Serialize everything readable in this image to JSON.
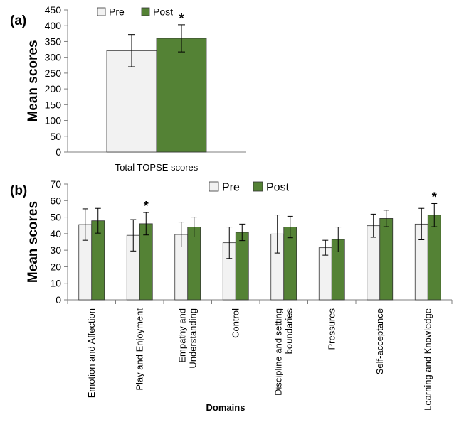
{
  "colors": {
    "pre": "#f2f2f2",
    "post": "#548235",
    "edge": "#333333",
    "axis": "#7f7f7f"
  },
  "chart_data": [
    {
      "panel": "(a)",
      "type": "bar",
      "ylabel": "Mean scores",
      "xlabel": "Total TOPSE scores",
      "ylim": [
        0,
        450
      ],
      "yticks": [
        0,
        50,
        100,
        150,
        200,
        250,
        300,
        350,
        400,
        450
      ],
      "categories": [
        ""
      ],
      "legend": {
        "placement": "top",
        "entries": [
          "Pre",
          "Post"
        ]
      },
      "series": [
        {
          "name": "Pre",
          "values": [
            321
          ],
          "errors": [
            51
          ]
        },
        {
          "name": "Post",
          "values": [
            360
          ],
          "errors": [
            43
          ]
        }
      ],
      "annotations": [
        {
          "text": "*",
          "category_index": 0,
          "series": "Post"
        }
      ],
      "grid": false
    },
    {
      "panel": "(b)",
      "type": "bar",
      "ylabel": "Mean scores",
      "xlabel": "Domains",
      "ylim": [
        0,
        70
      ],
      "yticks": [
        0,
        10,
        20,
        30,
        40,
        50,
        60,
        70
      ],
      "categories": [
        "Emotion and Affection",
        "Play and Enjoyment",
        [
          "Empathy and",
          "Understanding"
        ],
        "Control",
        [
          "Discipline and setting",
          "boundaries"
        ],
        "Pressures",
        "Self-acceptance",
        "Learning and Knowledge"
      ],
      "legend": {
        "placement": "top",
        "entries": [
          "Pre",
          "Post"
        ]
      },
      "series": [
        {
          "name": "Pre",
          "values": [
            45.5,
            39,
            39.5,
            34.5,
            39.8,
            31.5,
            44.8,
            45.8
          ],
          "errors": [
            9.5,
            9.5,
            7.5,
            9.5,
            11.5,
            4.5,
            7,
            9.5
          ]
        },
        {
          "name": "Post",
          "values": [
            47.8,
            46,
            44,
            40.8,
            44,
            36.5,
            49.2,
            51.2
          ],
          "errors": [
            7.5,
            6.8,
            6,
            5,
            6.5,
            7.5,
            5,
            7
          ]
        }
      ],
      "annotations": [
        {
          "text": "*",
          "category_index": 1,
          "series": "Post"
        },
        {
          "text": "*",
          "category_index": 7,
          "series": "Post"
        }
      ],
      "grid": false
    }
  ]
}
